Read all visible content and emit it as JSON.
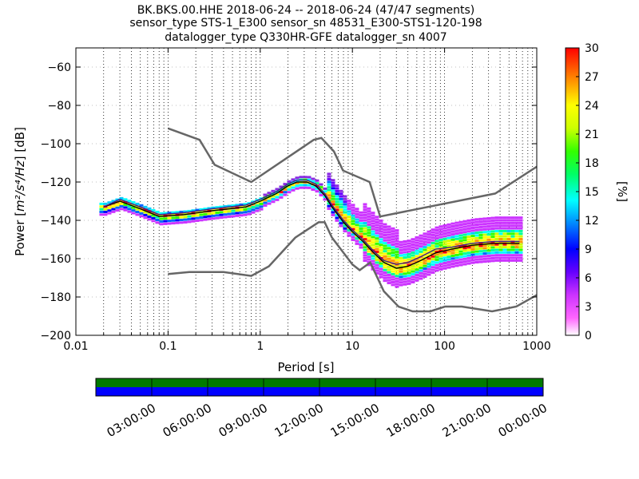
{
  "chart_data": {
    "type": "heatmap",
    "title_lines": [
      "BK.BKS.00.HHE   2018-06-24 -- 2018-06-24  (47/47 segments)",
      "sensor_type STS-1_E300 sensor_sn 48531_E300-STS1-120-198",
      "datalogger_type Q330HR-GFE datalogger_sn 4007"
    ],
    "xlabel": "Period [s]",
    "ylabel_prefix": "Power [",
    "ylabel_math": "m²/s⁴/Hz",
    "ylabel_suffix": "] [dB]",
    "x_scale": "log",
    "xlim": [
      0.01,
      1000
    ],
    "ylim": [
      -200,
      -50
    ],
    "x_ticks": [
      {
        "value": 0.01,
        "label": "0.01"
      },
      {
        "value": 0.1,
        "label": "0.1"
      },
      {
        "value": 1,
        "label": "1"
      },
      {
        "value": 10,
        "label": "10"
      },
      {
        "value": 100,
        "label": "100"
      },
      {
        "value": 1000,
        "label": "1000"
      }
    ],
    "y_ticks": [
      {
        "value": -60,
        "label": "−60"
      },
      {
        "value": -80,
        "label": "−80"
      },
      {
        "value": -100,
        "label": "−100"
      },
      {
        "value": -120,
        "label": "−120"
      },
      {
        "value": -140,
        "label": "−140"
      },
      {
        "value": -160,
        "label": "−160"
      },
      {
        "value": -180,
        "label": "−180"
      },
      {
        "value": -200,
        "label": "−200"
      }
    ],
    "grid": "dotted vertical",
    "colorbar": {
      "label": "[%]",
      "range": [
        0,
        30
      ],
      "ticks": [
        "0",
        "3",
        "6",
        "9",
        "12",
        "15",
        "18",
        "21",
        "24",
        "27",
        "30"
      ]
    },
    "model_curves": [
      {
        "name": "high",
        "color": "#666666",
        "points": [
          [
            0.1,
            -92
          ],
          [
            0.22,
            -98
          ],
          [
            0.32,
            -111
          ],
          [
            0.8,
            -120
          ],
          [
            3.8,
            -98
          ],
          [
            4.6,
            -97
          ],
          [
            6.3,
            -104
          ],
          [
            7.9,
            -114
          ],
          [
            15.4,
            -120
          ],
          [
            20,
            -138
          ],
          [
            354,
            -126
          ],
          [
            1000,
            -112
          ]
        ]
      },
      {
        "name": "low",
        "color": "#666666",
        "points": [
          [
            0.1,
            -168
          ],
          [
            0.17,
            -167
          ],
          [
            0.4,
            -167
          ],
          [
            0.8,
            -169
          ],
          [
            1.24,
            -164
          ],
          [
            2.4,
            -149
          ],
          [
            4.3,
            -141
          ],
          [
            5,
            -141
          ],
          [
            6,
            -149
          ],
          [
            10,
            -163
          ],
          [
            12,
            -166
          ],
          [
            15.6,
            -162
          ],
          [
            21.9,
            -177
          ],
          [
            31.6,
            -185
          ],
          [
            45,
            -187.5
          ],
          [
            70,
            -187.5
          ],
          [
            101,
            -185
          ],
          [
            154,
            -185
          ],
          [
            328,
            -187.5
          ],
          [
            600,
            -185
          ],
          [
            1000,
            -179
          ]
        ]
      }
    ],
    "stat_curves": [
      {
        "name": "mean",
        "color": "#000000",
        "points": [
          [
            0.02,
            -133
          ],
          [
            0.03,
            -130
          ],
          [
            0.05,
            -134
          ],
          [
            0.08,
            -138
          ],
          [
            0.15,
            -137
          ],
          [
            0.3,
            -135
          ],
          [
            0.7,
            -133
          ],
          [
            1,
            -130
          ],
          [
            1.5,
            -126
          ],
          [
            2,
            -122
          ],
          [
            2.5,
            -120
          ],
          [
            3.2,
            -120
          ],
          [
            4,
            -122
          ],
          [
            5,
            -127
          ],
          [
            6,
            -133
          ],
          [
            8,
            -141
          ],
          [
            10,
            -146
          ],
          [
            13,
            -151
          ],
          [
            17,
            -157
          ],
          [
            22,
            -162
          ],
          [
            30,
            -165
          ],
          [
            40,
            -164
          ],
          [
            55,
            -161
          ],
          [
            80,
            -157
          ],
          [
            120,
            -155
          ],
          [
            200,
            -153
          ],
          [
            350,
            -152
          ],
          [
            650,
            -152
          ]
        ]
      },
      {
        "name": "median",
        "color": "#3a1b8a",
        "points": [
          [
            0.02,
            -133
          ],
          [
            0.03,
            -129
          ],
          [
            0.05,
            -133
          ],
          [
            0.08,
            -137
          ],
          [
            0.15,
            -136
          ],
          [
            0.3,
            -134
          ],
          [
            0.7,
            -132
          ],
          [
            1,
            -129
          ],
          [
            1.5,
            -125
          ],
          [
            2,
            -121
          ],
          [
            2.5,
            -119
          ],
          [
            3.2,
            -119
          ],
          [
            4,
            -121
          ],
          [
            5,
            -126
          ],
          [
            6,
            -132
          ],
          [
            8,
            -140
          ],
          [
            10,
            -145
          ],
          [
            13,
            -150
          ],
          [
            17,
            -156
          ],
          [
            22,
            -161
          ],
          [
            30,
            -163
          ],
          [
            40,
            -162
          ],
          [
            55,
            -159
          ],
          [
            80,
            -155
          ],
          [
            120,
            -154
          ],
          [
            200,
            -152
          ],
          [
            350,
            -151
          ],
          [
            650,
            -151
          ]
        ]
      }
    ],
    "timeline": {
      "tick_labels": [
        "03:00:00",
        "06:00:00",
        "09:00:00",
        "12:00:00",
        "15:00:00",
        "18:00:00",
        "21:00:00",
        "00:00:00"
      ],
      "bands": [
        {
          "color": "#007a00"
        },
        {
          "color": "#0000ff"
        }
      ],
      "coverage": [
        0,
        24
      ]
    }
  }
}
